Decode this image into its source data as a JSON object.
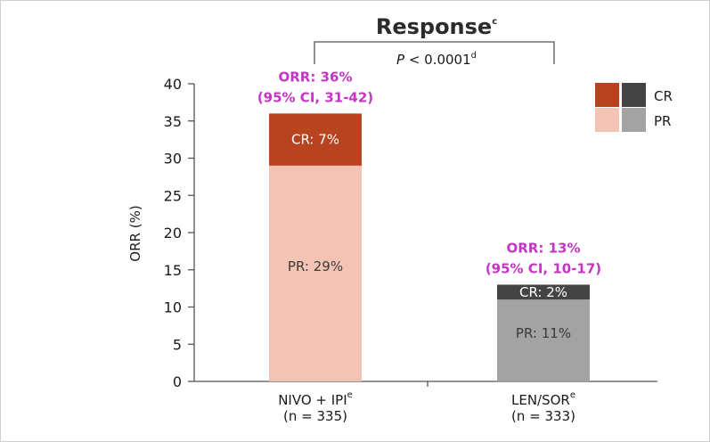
{
  "chart_data": {
    "type": "bar",
    "stacked": true,
    "title": "Response",
    "title_sup": "c",
    "ylabel": "ORR (%)",
    "ylim": [
      0,
      40
    ],
    "yticks": [
      "0",
      "5",
      "10",
      "15",
      "20",
      "25",
      "30",
      "35",
      "40"
    ],
    "grid": false,
    "legend_position": "top-right",
    "comparison": {
      "label": "P < 0.0001",
      "label_italic": "P",
      "label_rest": " < 0.0001",
      "sup": "d"
    },
    "categories": [
      {
        "name": "NIVO + IPI",
        "sup": "e",
        "n": "(n = 335)"
      },
      {
        "name": "LEN/SOR",
        "sup": "e",
        "n": "(n = 333)"
      }
    ],
    "series": [
      {
        "name": "PR",
        "values": [
          29,
          11
        ],
        "labels": [
          "PR: 29%",
          "PR: 11%"
        ],
        "colors": [
          "#f3c4b3",
          "#a3a3a3"
        ]
      },
      {
        "name": "CR",
        "values": [
          7,
          2
        ],
        "labels": [
          "CR: 7%",
          "CR: 2%"
        ],
        "colors": [
          "#b8441f",
          "#444444"
        ]
      }
    ],
    "annotations": [
      {
        "line1": "ORR: 36%",
        "line2": "(95% CI, 31-42)"
      },
      {
        "line1": "ORR: 13%",
        "line2": "(95% CI, 10-17)"
      }
    ],
    "colors": {
      "annotation": "#c535c5",
      "cr_label_text": "#ffffff",
      "pr_label_text": "#3a3a3a"
    }
  }
}
